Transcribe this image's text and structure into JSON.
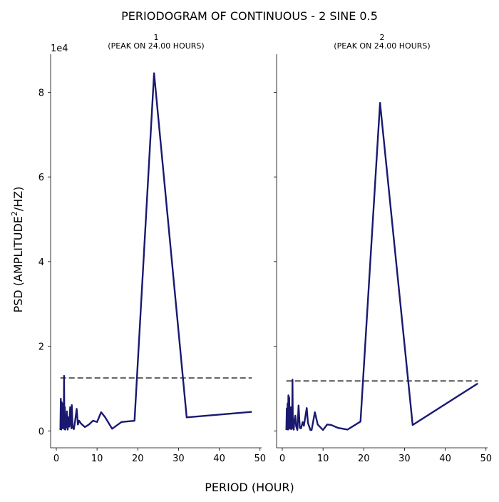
{
  "figure": {
    "title": "PERIODOGRAM OF CONTINUOUS - 2 SINE 0.5",
    "xlabel": "PERIOD (HOUR)",
    "ylabel": "PSD (AMPLITUDE",
    "ylabel_sup": "2",
    "ylabel_tail": "/HZ)",
    "yscale_label": "1e4"
  },
  "chart_data": [
    {
      "type": "line",
      "title_line1": "1",
      "title_line2": "(PEAK ON 24.00 HOURS)",
      "xlim": [
        -1.4,
        50.4
      ],
      "ylim": [
        -4000,
        89000
      ],
      "xticks": [
        0,
        10,
        20,
        30,
        40,
        50
      ],
      "yticks": [
        0,
        20000,
        40000,
        60000,
        80000
      ],
      "ytick_labels": [
        "0",
        "2",
        "4",
        "6",
        "8"
      ],
      "line_color": "#191970",
      "threshold_color": "#696969",
      "threshold": {
        "y": 12500,
        "x": [
          1,
          48
        ]
      },
      "series": {
        "x": [
          1.0,
          1.1,
          1.2,
          1.3,
          1.4,
          1.5,
          1.6,
          1.7,
          1.8,
          1.9,
          2.0,
          2.1,
          2.2,
          2.3,
          2.4,
          2.5,
          2.6,
          2.8,
          3.0,
          3.2,
          3.4,
          3.7,
          3.8,
          4.0,
          4.3,
          4.6,
          5.0,
          5.3,
          5.6,
          6.0,
          7.0,
          8.0,
          9.0,
          10.0,
          11.0,
          12.0,
          13.7,
          16.0,
          19.2,
          24.0,
          32.0,
          48.0
        ],
        "y": [
          200,
          7600,
          300,
          6800,
          900,
          6500,
          600,
          5800,
          1200,
          13000,
          400,
          5600,
          300,
          1500,
          3800,
          800,
          4600,
          300,
          3200,
          1000,
          5600,
          600,
          6100,
          900,
          400,
          2200,
          5200,
          1500,
          2400,
          1800,
          900,
          1500,
          2400,
          2100,
          4400,
          3200,
          500,
          2100,
          2400,
          84500,
          3200,
          4500
        ]
      }
    },
    {
      "type": "line",
      "title_line1": "2",
      "title_line2": "(PEAK ON 24.00 HOURS)",
      "xlim": [
        -1.4,
        50.4
      ],
      "ylim": [
        -4000,
        89000
      ],
      "xticks": [
        0,
        10,
        20,
        30,
        40,
        50
      ],
      "yticks": [
        0,
        20000,
        40000,
        60000,
        80000
      ],
      "line_color": "#191970",
      "threshold_color": "#696969",
      "threshold": {
        "y": 11800,
        "x": [
          1,
          48
        ]
      },
      "series": {
        "x": [
          1.0,
          1.1,
          1.2,
          1.3,
          1.4,
          1.5,
          1.6,
          1.7,
          1.8,
          1.9,
          2.0,
          2.1,
          2.2,
          2.3,
          2.4,
          2.5,
          2.6,
          2.8,
          3.0,
          3.2,
          3.4,
          3.7,
          4.0,
          4.3,
          4.6,
          5.0,
          5.3,
          6.0,
          6.3,
          6.9,
          7.2,
          8.0,
          8.7,
          10.0,
          11.0,
          12.0,
          13.7,
          16.0,
          19.2,
          24.0,
          32.0,
          48.0
        ],
        "y": [
          200,
          5300,
          600,
          6500,
          300,
          8400,
          500,
          7900,
          900,
          2600,
          500,
          5600,
          400,
          3400,
          700,
          12100,
          800,
          300,
          2600,
          3600,
          1100,
          200,
          6000,
          700,
          600,
          2100,
          1200,
          5400,
          1900,
          200,
          200,
          4400,
          1500,
          200,
          1500,
          1400,
          700,
          300,
          2200,
          77500,
          1400,
          11200
        ]
      }
    }
  ]
}
